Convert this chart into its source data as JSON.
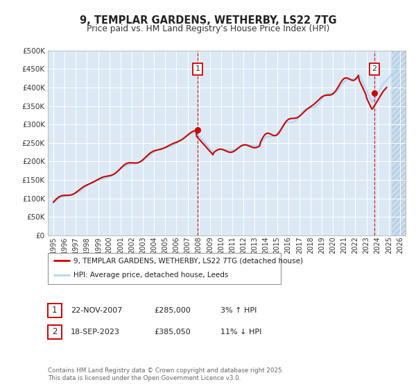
{
  "title": "9, TEMPLAR GARDENS, WETHERBY, LS22 7TG",
  "subtitle": "Price paid vs. HM Land Registry's House Price Index (HPI)",
  "ylim": [
    0,
    500000
  ],
  "yticks": [
    0,
    50000,
    100000,
    150000,
    200000,
    250000,
    300000,
    350000,
    400000,
    450000,
    500000
  ],
  "xlim_start": 1994.5,
  "xlim_end": 2026.5,
  "xticks": [
    1995,
    1996,
    1997,
    1998,
    1999,
    2000,
    2001,
    2002,
    2003,
    2004,
    2005,
    2006,
    2007,
    2008,
    2009,
    2010,
    2011,
    2012,
    2013,
    2014,
    2015,
    2016,
    2017,
    2018,
    2019,
    2020,
    2021,
    2022,
    2023,
    2024,
    2025,
    2026
  ],
  "hpi_color": "#add8f0",
  "price_color": "#cc0000",
  "hatch_start": 2025.25,
  "marker1_x": 2007.896,
  "marker1_y": 285000,
  "marker2_x": 2023.716,
  "marker2_y": 385050,
  "legend_label1": "9, TEMPLAR GARDENS, WETHERBY, LS22 7TG (detached house)",
  "legend_label2": "HPI: Average price, detached house, Leeds",
  "table_row1": [
    "1",
    "22-NOV-2007",
    "£285,000",
    "3% ↑ HPI"
  ],
  "table_row2": [
    "2",
    "18-SEP-2023",
    "£385,050",
    "11% ↓ HPI"
  ],
  "footnote": "Contains HM Land Registry data © Crown copyright and database right 2025.\nThis data is licensed under the Open Government Licence v3.0.",
  "bg_color": "#ffffff",
  "plot_bg_color": "#dce9f5",
  "grid_color": "#ffffff",
  "hatch_fill_color": "#c5d8ea"
}
